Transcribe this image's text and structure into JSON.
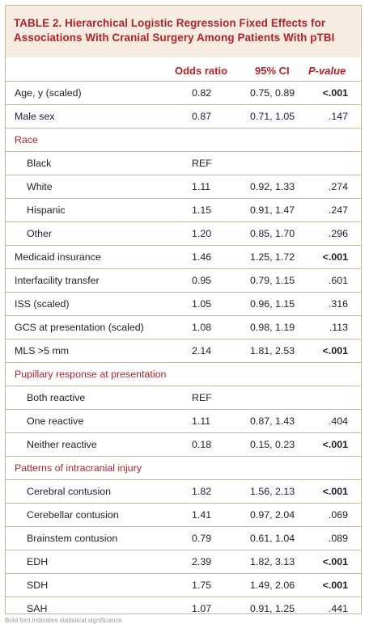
{
  "table": {
    "label": "TABLE 2.",
    "title": "Hierarchical Logistic Regression Fixed Effects for Associations With Cranial Surgery Among Patients With pTBI",
    "headers": {
      "odds_ratio": "Odds ratio",
      "ci": "95% CI",
      "p_value": "P-value"
    },
    "rows": [
      {
        "label": "Age, y (scaled)",
        "or": "0.82",
        "ci": "0.75, 0.89",
        "p": "<.001",
        "kind": "main",
        "bold_p": true
      },
      {
        "label": "Male sex",
        "or": "0.87",
        "ci": "0.71, 1.05",
        "p": ".147",
        "kind": "main",
        "bold_p": false
      },
      {
        "label": "Race",
        "or": "",
        "ci": "",
        "p": "",
        "kind": "section",
        "bold_p": false
      },
      {
        "label": "Black",
        "or": "REF",
        "ci": "",
        "p": "",
        "kind": "sub",
        "bold_p": false
      },
      {
        "label": "White",
        "or": "1.11",
        "ci": "0.92, 1.33",
        "p": ".274",
        "kind": "sub",
        "bold_p": false
      },
      {
        "label": "Hispanic",
        "or": "1.15",
        "ci": "0.91, 1.47",
        "p": ".247",
        "kind": "sub",
        "bold_p": false
      },
      {
        "label": "Other",
        "or": "1.20",
        "ci": "0.85, 1.70",
        "p": ".296",
        "kind": "sub",
        "bold_p": false
      },
      {
        "label": "Medicaid insurance",
        "or": "1.46",
        "ci": "1.25, 1.72",
        "p": "<.001",
        "kind": "main",
        "bold_p": true
      },
      {
        "label": "Interfacility transfer",
        "or": "0.95",
        "ci": "0.79, 1.15",
        "p": ".601",
        "kind": "main",
        "bold_p": false
      },
      {
        "label": "ISS (scaled)",
        "or": "1.05",
        "ci": "0.96, 1.15",
        "p": ".316",
        "kind": "main",
        "bold_p": false
      },
      {
        "label": "GCS at presentation (scaled)",
        "or": "1.08",
        "ci": "0.98, 1.19",
        "p": ".113",
        "kind": "main",
        "bold_p": false
      },
      {
        "label": "MLS >5 mm",
        "or": "2.14",
        "ci": "1.81, 2.53",
        "p": "<.001",
        "kind": "main",
        "bold_p": true
      },
      {
        "label": "Pupillary response at presentation",
        "or": "",
        "ci": "",
        "p": "",
        "kind": "section",
        "bold_p": false
      },
      {
        "label": "Both reactive",
        "or": "REF",
        "ci": "",
        "p": "",
        "kind": "sub",
        "bold_p": false
      },
      {
        "label": "One reactive",
        "or": "1.11",
        "ci": "0.87, 1.43",
        "p": ".404",
        "kind": "sub",
        "bold_p": false
      },
      {
        "label": "Neither reactive",
        "or": "0.18",
        "ci": "0.15, 0.23",
        "p": "<.001",
        "kind": "sub",
        "bold_p": true
      },
      {
        "label": "Patterns of intracranial injury",
        "or": "",
        "ci": "",
        "p": "",
        "kind": "section",
        "bold_p": false
      },
      {
        "label": "Cerebral contusion",
        "or": "1.82",
        "ci": "1.56, 2.13",
        "p": "<.001",
        "kind": "sub",
        "bold_p": true
      },
      {
        "label": "Cerebellar contusion",
        "or": "1.41",
        "ci": "0.97, 2.04",
        "p": ".069",
        "kind": "sub",
        "bold_p": false
      },
      {
        "label": "Brainstem contusion",
        "or": "0.79",
        "ci": "0.61, 1.04",
        "p": ".089",
        "kind": "sub",
        "bold_p": false
      },
      {
        "label": "EDH",
        "or": "2.39",
        "ci": "1.82, 3.13",
        "p": "<.001",
        "kind": "sub",
        "bold_p": true
      },
      {
        "label": "SDH",
        "or": "1.75",
        "ci": "1.49, 2.06",
        "p": "<.001",
        "kind": "sub",
        "bold_p": true
      },
      {
        "label": "SAH",
        "or": "1.07",
        "ci": "0.91, 1.25",
        "p": ".441",
        "kind": "sub",
        "bold_p": false
      }
    ],
    "footnote": "Bold font indicates statistical significance."
  },
  "colors": {
    "accent": "#b02228",
    "title_bg": "#f7ece1",
    "rule": "#c4b49a"
  }
}
